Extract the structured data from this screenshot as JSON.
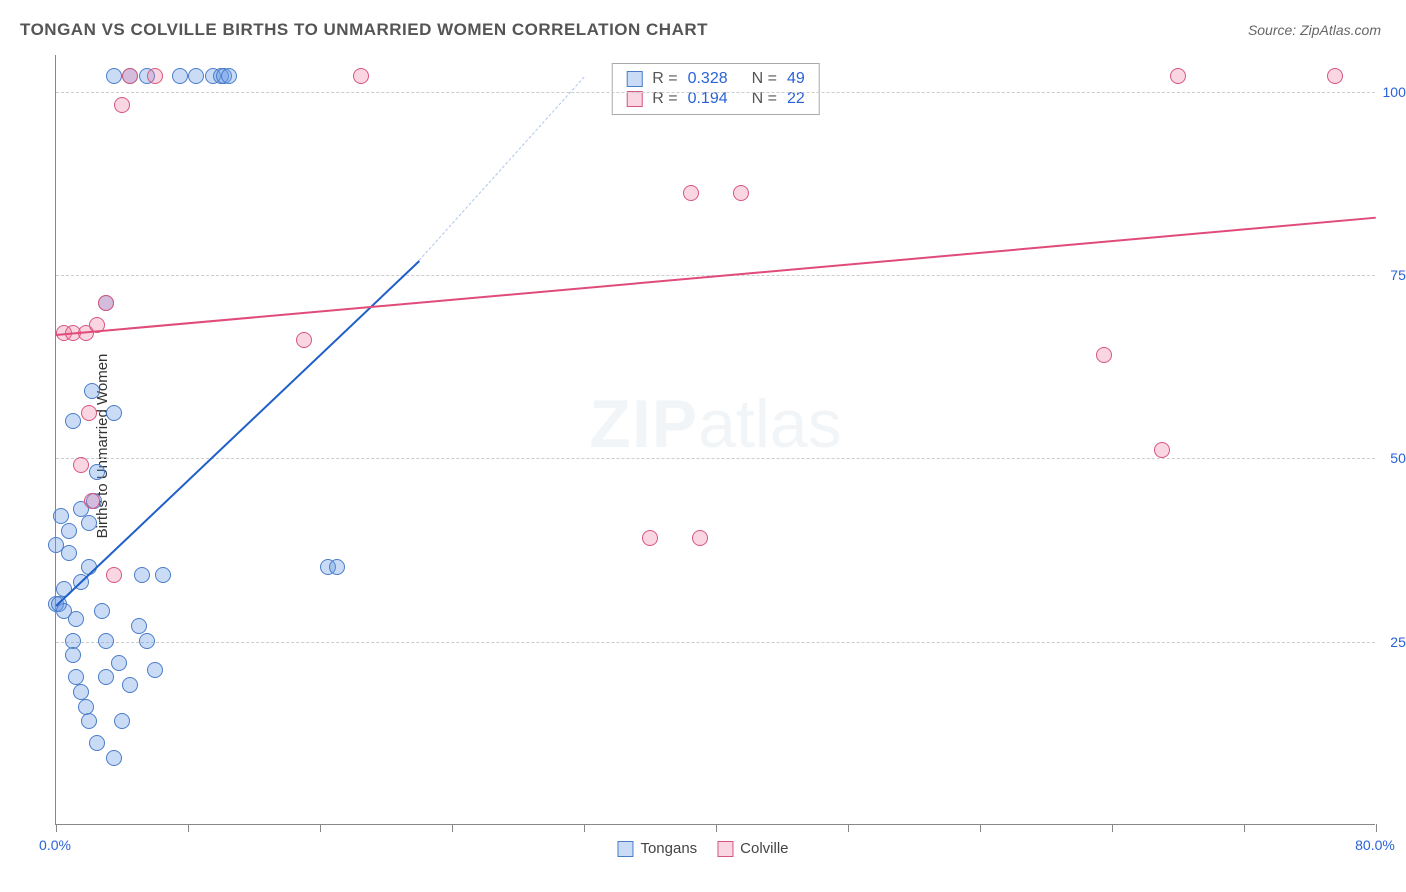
{
  "chart": {
    "type": "scatter",
    "title": "TONGAN VS COLVILLE BIRTHS TO UNMARRIED WOMEN CORRELATION CHART",
    "source_label": "Source: ZipAtlas.com",
    "y_axis_label": "Births to Unmarried Women",
    "watermark_part1": "ZIP",
    "watermark_part2": "atlas",
    "background_color": "#ffffff",
    "grid_color": "#cccccc",
    "axis_color": "#888888",
    "text_color": "#555555",
    "tick_label_color": "#2962d9",
    "xlim": [
      0,
      80
    ],
    "ylim": [
      0,
      105
    ],
    "y_ticks": [
      {
        "value": 25,
        "label": "25.0%"
      },
      {
        "value": 50,
        "label": "50.0%"
      },
      {
        "value": 75,
        "label": "75.0%"
      },
      {
        "value": 100,
        "label": "100.0%"
      }
    ],
    "x_ticks": [
      0,
      8,
      16,
      24,
      32,
      40,
      48,
      56,
      64,
      72,
      80
    ],
    "x_tick_labels": {
      "0": "0.0%",
      "80": "80.0%"
    },
    "marker_radius": 8,
    "marker_stroke_width": 1.5,
    "series": [
      {
        "name": "Tongans",
        "fill_color": "rgba(102,153,230,0.35)",
        "stroke_color": "#4a7dc9",
        "trend_color": "#1f5fc9",
        "trend": {
          "x1": 0,
          "y1": 30,
          "x2": 22,
          "y2": 77,
          "dashed_extend_to": {
            "x": 32,
            "y": 102
          }
        },
        "stats": {
          "R": "0.328",
          "N": "49"
        },
        "points": [
          [
            0.0,
            30
          ],
          [
            0.2,
            30
          ],
          [
            0.5,
            32
          ],
          [
            0.5,
            29
          ],
          [
            0.8,
            40
          ],
          [
            0.8,
            37
          ],
          [
            1.0,
            25
          ],
          [
            1.0,
            23
          ],
          [
            1.2,
            28
          ],
          [
            1.2,
            20
          ],
          [
            1.5,
            18
          ],
          [
            1.5,
            33
          ],
          [
            1.8,
            16
          ],
          [
            2.0,
            14
          ],
          [
            2.0,
            41
          ],
          [
            2.0,
            35
          ],
          [
            2.2,
            59
          ],
          [
            2.3,
            44
          ],
          [
            2.5,
            11
          ],
          [
            2.5,
            48
          ],
          [
            2.8,
            29
          ],
          [
            3.0,
            25
          ],
          [
            3.0,
            20
          ],
          [
            3.0,
            71
          ],
          [
            3.5,
            9
          ],
          [
            3.5,
            56
          ],
          [
            3.8,
            22
          ],
          [
            4.0,
            14
          ],
          [
            4.5,
            19
          ],
          [
            5.0,
            27
          ],
          [
            5.2,
            34
          ],
          [
            5.5,
            25
          ],
          [
            6.0,
            21
          ],
          [
            6.5,
            34
          ],
          [
            3.5,
            102
          ],
          [
            4.5,
            102
          ],
          [
            5.5,
            102
          ],
          [
            7.5,
            102
          ],
          [
            8.5,
            102
          ],
          [
            9.5,
            102
          ],
          [
            10.0,
            102
          ],
          [
            10.2,
            102
          ],
          [
            10.5,
            102
          ],
          [
            16.5,
            35
          ],
          [
            17.0,
            35
          ],
          [
            0.0,
            38
          ],
          [
            0.3,
            42
          ],
          [
            1.0,
            55
          ],
          [
            1.5,
            43
          ]
        ]
      },
      {
        "name": "Colville",
        "fill_color": "rgba(235,120,160,0.30)",
        "stroke_color": "#d9567f",
        "trend_color": "#e04b7a",
        "trend": {
          "x1": 0,
          "y1": 67,
          "x2": 80,
          "y2": 83
        },
        "stats": {
          "R": "0.194",
          "N": "22"
        },
        "points": [
          [
            0.5,
            67
          ],
          [
            1.0,
            67
          ],
          [
            1.5,
            49
          ],
          [
            2.0,
            56
          ],
          [
            2.2,
            44
          ],
          [
            3.0,
            71
          ],
          [
            3.5,
            34
          ],
          [
            4.0,
            98
          ],
          [
            4.5,
            102
          ],
          [
            15.0,
            66
          ],
          [
            18.5,
            102
          ],
          [
            38.5,
            86
          ],
          [
            41.5,
            86
          ],
          [
            36.0,
            39
          ],
          [
            39.0,
            39
          ],
          [
            63.5,
            64
          ],
          [
            67.0,
            51
          ],
          [
            68.0,
            102
          ],
          [
            77.5,
            102
          ],
          [
            1.8,
            67
          ],
          [
            2.5,
            68
          ],
          [
            6.0,
            102
          ]
        ]
      }
    ],
    "legend_bottom": [
      {
        "label": "Tongans",
        "fill": "rgba(102,153,230,0.35)",
        "stroke": "#4a7dc9"
      },
      {
        "label": "Colville",
        "fill": "rgba(235,120,160,0.30)",
        "stroke": "#d9567f"
      }
    ]
  }
}
